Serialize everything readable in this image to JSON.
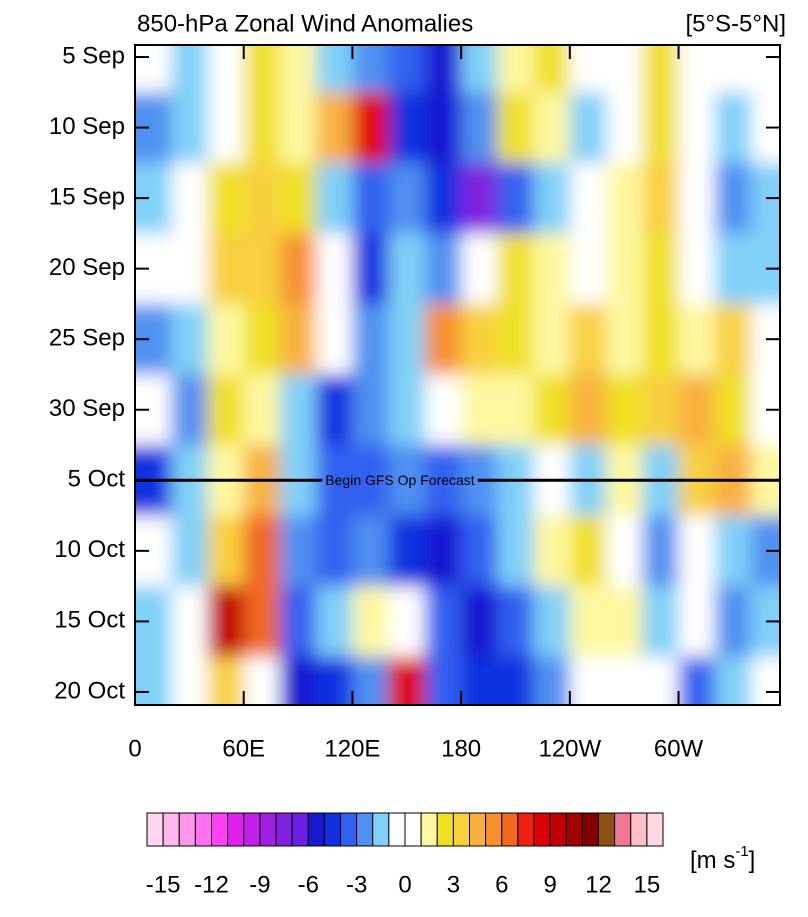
{
  "chart_data": {
    "type": "heatmap",
    "title": "850-hPa Zonal Wind Anomalies",
    "subtitle": "[5°S-5°N]",
    "x": [
      10,
      30,
      50,
      70,
      90,
      110,
      130,
      150,
      170,
      190,
      210,
      230,
      250,
      270,
      290,
      310,
      330,
      350
    ],
    "y": [
      "5 Sep",
      "10 Sep",
      "15 Sep",
      "20 Sep",
      "25 Sep",
      "30 Sep",
      "5 Oct",
      "10 Oct",
      "15 Oct",
      "20 Oct"
    ],
    "values": [
      [
        0,
        -2,
        -1,
        2,
        1,
        -2,
        -3,
        -4,
        -6,
        -2,
        1,
        2,
        -1,
        0,
        2,
        0,
        -1,
        0
      ],
      [
        -3,
        -2,
        -1,
        2,
        1,
        4,
        8,
        -5,
        -6,
        -3,
        2,
        1,
        -2,
        0,
        2,
        0,
        -2,
        -1
      ],
      [
        -2,
        -1,
        2,
        3,
        2,
        -2,
        -4,
        -3,
        -5,
        -8,
        -4,
        -2,
        -1,
        1,
        3,
        -1,
        -3,
        -2
      ],
      [
        -1,
        0,
        3,
        3,
        5,
        -1,
        -5,
        -2,
        -3,
        -1,
        2,
        1,
        0,
        1,
        2,
        -1,
        -2,
        -2
      ],
      [
        -3,
        -2,
        1,
        2,
        4,
        0,
        -3,
        -2,
        5,
        3,
        2,
        1,
        3,
        1,
        2,
        1,
        3,
        -1
      ],
      [
        -1,
        -3,
        2,
        1,
        -2,
        -5,
        -3,
        -2,
        -1,
        1,
        1,
        2,
        4,
        2,
        3,
        4,
        2,
        0
      ],
      [
        -5,
        -2,
        1,
        4,
        -2,
        -4,
        -4,
        -3,
        -4,
        -3,
        -2,
        -1,
        -2,
        1,
        -2,
        3,
        4,
        1
      ],
      [
        -1,
        -2,
        3,
        6,
        -3,
        -4,
        -3,
        -5,
        -6,
        -4,
        -2,
        1,
        2,
        0,
        -3,
        -1,
        -2,
        -3
      ],
      [
        -2,
        -1,
        9,
        6,
        -4,
        -2,
        1,
        -1,
        -4,
        -6,
        -4,
        -2,
        1,
        1,
        -2,
        -1,
        -3,
        -2
      ],
      [
        -2,
        0,
        3,
        0,
        -6,
        -5,
        -3,
        8,
        -4,
        -5,
        -5,
        -3,
        -1,
        0,
        -1,
        -4,
        -2,
        0
      ]
    ],
    "xlim": [
      0,
      356
    ],
    "xticks": [
      0,
      {
        "value": 60,
        "label": "60E"
      },
      {
        "value": 120,
        "label": "120E"
      },
      180,
      {
        "value": 240,
        "label": "120W"
      },
      {
        "value": 300,
        "label": "60W"
      }
    ],
    "annotation": {
      "text": "Begin GFS Op Forecast",
      "y": "5 Oct"
    },
    "colorbar": {
      "lim": [
        -16,
        16
      ],
      "ticks": [
        -15,
        -12,
        -9,
        -6,
        -3,
        0,
        3,
        6,
        9,
        12,
        15
      ],
      "colors": [
        "#ffd6f0",
        "#ffb8ee",
        "#ff96ee",
        "#ff70f0",
        "#ff40f5",
        "#e020f0",
        "#c020e8",
        "#a020e0",
        "#8020e0",
        "#6a20e8",
        "#1818d0",
        "#1030e0",
        "#3060f0",
        "#5090f0",
        "#80d0f8",
        "#ffffff",
        "#ffffff",
        "#fff8a0",
        "#f0e020",
        "#f8d040",
        "#f8b040",
        "#f89030",
        "#f06820",
        "#f02010",
        "#e00000",
        "#c00000",
        "#a00000",
        "#800000",
        "#8c5010",
        "#f07890",
        "#ffc0c8",
        "#ffd8e0"
      ],
      "unit_parts": [
        "[m s",
        "-1",
        "]"
      ]
    }
  }
}
